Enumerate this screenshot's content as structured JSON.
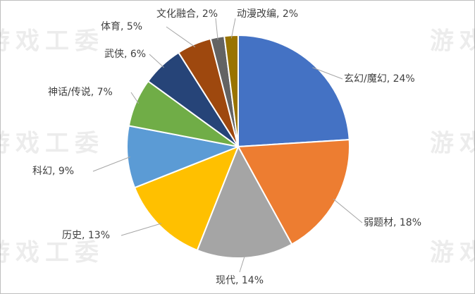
{
  "chart_data": {
    "type": "pie",
    "watermark": "游戏工委",
    "values": [
      24,
      18,
      14,
      13,
      9,
      7,
      6,
      5,
      2,
      2
    ],
    "value_labels": [
      "玄幻/魔幻, 24%",
      "弱题材, 18%",
      "现代, 14%",
      "历史, 13%",
      "科幻, 9%",
      "神话/传说, 7%",
      "武侠, 6%",
      "体育, 5%",
      "文化融合, 2%",
      "动漫改编, 2%"
    ],
    "colors": [
      "#4472c4",
      "#ed7d31",
      "#a5a5a5",
      "#ffc000",
      "#5b9bd5",
      "#70ad47",
      "#264478",
      "#9e480e",
      "#636363",
      "#997300"
    ]
  }
}
